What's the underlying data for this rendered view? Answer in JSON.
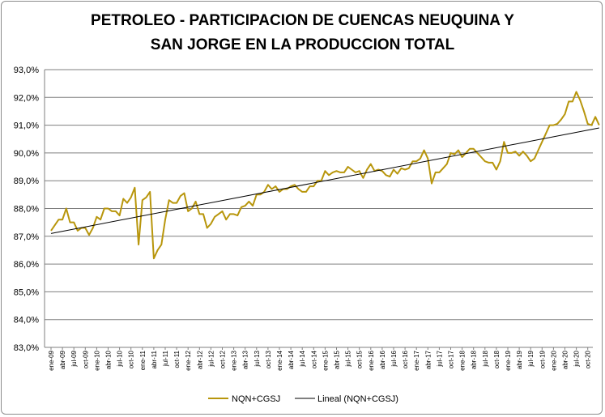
{
  "chart_data": {
    "type": "line",
    "title": [
      "PETROLEO - PARTICIPACION DE CUENCAS NEUQUINA Y",
      "SAN JORGE EN LA PRODUCCION TOTAL"
    ],
    "y_unit": "%",
    "ylim": [
      83.0,
      93.0
    ],
    "y_ticks": [
      "83,0%",
      "84,0%",
      "85,0%",
      "86,0%",
      "87,0%",
      "88,0%",
      "89,0%",
      "90,0%",
      "91,0%",
      "92,0%",
      "93,0%"
    ],
    "x_tick_labels": [
      "ene-09",
      "abr-09",
      "jul-09",
      "oct-09",
      "ene-10",
      "abr-10",
      "jul-10",
      "oct-10",
      "ene-11",
      "abr-11",
      "jul-11",
      "oct-11",
      "ene-12",
      "abr-12",
      "jul-12",
      "oct-12",
      "ene-13",
      "abr-13",
      "jul-13",
      "oct-13",
      "ene-14",
      "abr-14",
      "jul-14",
      "oct-14",
      "ene-15",
      "abr-15",
      "jul-15",
      "oct-15",
      "ene-16",
      "abr-16",
      "jul-16",
      "oct-16",
      "ene-17",
      "abr-17",
      "jul-17",
      "oct-17",
      "ene-18",
      "abr-18",
      "jul-18",
      "oct-18",
      "ene-19",
      "abr-19",
      "jul-19",
      "oct-19",
      "ene-20",
      "abr-20",
      "jul-20",
      "oct-20"
    ],
    "grid": "horizontal",
    "legend_position": "bottom",
    "series": [
      {
        "name": "NQN+CGSJ",
        "color": "#b8960c",
        "values": [
          87.2,
          87.4,
          87.6,
          87.6,
          88.0,
          87.5,
          87.5,
          87.2,
          87.3,
          87.3,
          87.05,
          87.3,
          87.7,
          87.6,
          88.0,
          88.0,
          87.9,
          87.9,
          87.75,
          88.35,
          88.2,
          88.4,
          88.75,
          86.7,
          88.3,
          88.4,
          88.6,
          86.2,
          86.5,
          86.7,
          87.6,
          88.3,
          88.2,
          88.2,
          88.45,
          88.55,
          87.9,
          88.0,
          88.25,
          87.8,
          87.8,
          87.3,
          87.45,
          87.7,
          87.8,
          87.9,
          87.6,
          87.8,
          87.8,
          87.75,
          88.05,
          88.1,
          88.25,
          88.1,
          88.5,
          88.5,
          88.6,
          88.85,
          88.7,
          88.8,
          88.6,
          88.7,
          88.7,
          88.8,
          88.85,
          88.7,
          88.6,
          88.6,
          88.8,
          88.8,
          89.0,
          89.0,
          89.35,
          89.2,
          89.3,
          89.35,
          89.3,
          89.3,
          89.5,
          89.4,
          89.3,
          89.35,
          89.1,
          89.4,
          89.6,
          89.35,
          89.4,
          89.35,
          89.2,
          89.15,
          89.4,
          89.25,
          89.45,
          89.4,
          89.45,
          89.7,
          89.7,
          89.8,
          90.1,
          89.8,
          88.9,
          89.3,
          89.3,
          89.45,
          89.6,
          90.0,
          89.95,
          90.1,
          89.85,
          90.0,
          90.15,
          90.15,
          90.0,
          89.85,
          89.7,
          89.65,
          89.65,
          89.4,
          89.7,
          90.4,
          90.0,
          90.0,
          90.05,
          89.9,
          90.05,
          89.9,
          89.7,
          89.8,
          90.1,
          90.4,
          90.7,
          91.0,
          91.0,
          91.05,
          91.2,
          91.4,
          91.85,
          91.85,
          92.2,
          91.9,
          91.5,
          91.05,
          91.0,
          91.3,
          91.0
        ]
      },
      {
        "name": "Lineal (NQN+CGSJ)",
        "color": "#000000",
        "trend": [
          87.1,
          90.9
        ]
      }
    ]
  }
}
